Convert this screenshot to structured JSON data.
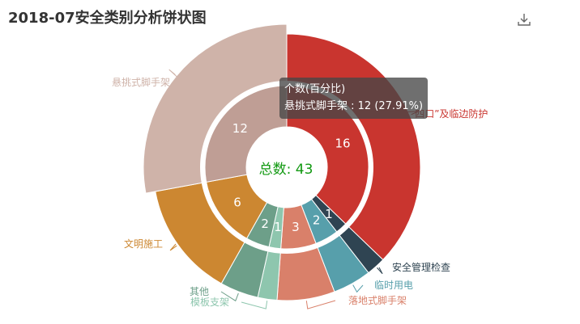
{
  "title": "2018-07安全类别分析饼状图",
  "toolbar": {
    "download_icon": "download-icon"
  },
  "tooltip": {
    "header": "个数(百分比)",
    "body": "悬挑式脚手架 : 12 (27.91%)"
  },
  "center": {
    "label": "总数:",
    "value": "43"
  },
  "chart_data": {
    "type": "pie",
    "title": "2018-07安全类别分析饼状图",
    "total": 43,
    "series": [
      {
        "name": "“三宝、四口”及临边防护",
        "value": 16,
        "color": "#c9352f"
      },
      {
        "name": "安全管理检查",
        "value": 1,
        "color": "#2f4452"
      },
      {
        "name": "临时用电",
        "value": 2,
        "color": "#579fab"
      },
      {
        "name": "落地式脚手架",
        "value": 3,
        "color": "#d9806a"
      },
      {
        "name": "模板支架",
        "value": 1,
        "color": "#8ec6ae"
      },
      {
        "name": "其他",
        "value": 2,
        "color": "#6d9f89"
      },
      {
        "name": "文明施工",
        "value": 6,
        "color": "#cc8731"
      },
      {
        "name": "悬挑式脚手架",
        "value": 12,
        "color": "#cfb3a9",
        "inner_color": "#bf9e95",
        "highlighted": true
      }
    ]
  }
}
